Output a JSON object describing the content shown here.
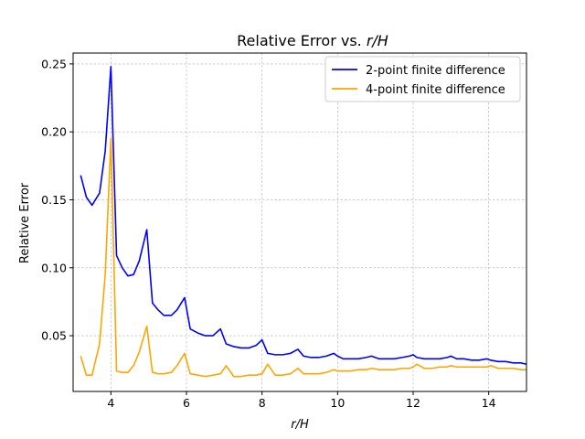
{
  "chart_data": {
    "type": "line",
    "title": "Relative Error vs. r/H",
    "xlabel": "r/H",
    "ylabel": "Relative Error",
    "xlim": [
      3.0,
      15.0
    ],
    "ylim": [
      0.009,
      0.258
    ],
    "xticks": [
      4,
      6,
      8,
      10,
      12,
      14
    ],
    "yticks": [
      0.05,
      0.1,
      0.15,
      0.2,
      0.25
    ],
    "xtick_labels": [
      "4",
      "6",
      "8",
      "10",
      "12",
      "14"
    ],
    "ytick_labels": [
      "0.05",
      "0.10",
      "0.15",
      "0.20",
      "0.25"
    ],
    "grid": true,
    "legend_position": "top-right",
    "series": [
      {
        "name": "2-point finite difference",
        "color": "#0000ff",
        "x": [
          3.2,
          3.35,
          3.5,
          3.7,
          3.85,
          4.0,
          4.15,
          4.3,
          4.45,
          4.6,
          4.75,
          4.95,
          5.1,
          5.25,
          5.4,
          5.6,
          5.75,
          5.95,
          6.1,
          6.3,
          6.5,
          6.7,
          6.9,
          7.05,
          7.25,
          7.45,
          7.65,
          7.85,
          8.0,
          8.15,
          8.35,
          8.55,
          8.75,
          8.95,
          9.1,
          9.3,
          9.5,
          9.7,
          9.9,
          10.0,
          10.15,
          10.35,
          10.55,
          10.75,
          10.9,
          11.1,
          11.3,
          11.5,
          11.7,
          11.9,
          12.0,
          12.1,
          12.3,
          12.5,
          12.7,
          12.9,
          13.0,
          13.15,
          13.35,
          13.55,
          13.75,
          13.95,
          14.05,
          14.25,
          14.45,
          14.65,
          14.85,
          15.0
        ],
        "values": [
          0.168,
          0.152,
          0.146,
          0.155,
          0.186,
          0.248,
          0.109,
          0.1,
          0.094,
          0.095,
          0.105,
          0.128,
          0.074,
          0.069,
          0.065,
          0.065,
          0.069,
          0.078,
          0.055,
          0.052,
          0.05,
          0.05,
          0.055,
          0.044,
          0.042,
          0.041,
          0.041,
          0.043,
          0.047,
          0.037,
          0.036,
          0.036,
          0.037,
          0.04,
          0.035,
          0.034,
          0.034,
          0.035,
          0.037,
          0.035,
          0.033,
          0.033,
          0.033,
          0.034,
          0.035,
          0.033,
          0.033,
          0.033,
          0.034,
          0.035,
          0.036,
          0.034,
          0.033,
          0.033,
          0.033,
          0.034,
          0.035,
          0.033,
          0.033,
          0.032,
          0.032,
          0.033,
          0.032,
          0.031,
          0.031,
          0.03,
          0.03,
          0.029
        ]
      },
      {
        "name": "4-point finite difference",
        "color": "#ffa500",
        "x": [
          3.2,
          3.35,
          3.5,
          3.7,
          3.85,
          4.0,
          4.15,
          4.3,
          4.45,
          4.6,
          4.75,
          4.95,
          5.1,
          5.25,
          5.4,
          5.6,
          5.75,
          5.95,
          6.1,
          6.3,
          6.5,
          6.7,
          6.9,
          7.05,
          7.25,
          7.45,
          7.65,
          7.85,
          8.0,
          8.15,
          8.35,
          8.55,
          8.75,
          8.95,
          9.1,
          9.3,
          9.5,
          9.7,
          9.9,
          10.0,
          10.15,
          10.35,
          10.55,
          10.75,
          10.9,
          11.1,
          11.3,
          11.5,
          11.7,
          11.9,
          12.0,
          12.1,
          12.3,
          12.5,
          12.7,
          12.9,
          13.0,
          13.15,
          13.35,
          13.55,
          13.75,
          13.95,
          14.05,
          14.25,
          14.45,
          14.65,
          14.85,
          15.0
        ],
        "values": [
          0.035,
          0.021,
          0.021,
          0.044,
          0.095,
          0.195,
          0.024,
          0.023,
          0.023,
          0.028,
          0.038,
          0.057,
          0.023,
          0.022,
          0.022,
          0.023,
          0.028,
          0.037,
          0.022,
          0.021,
          0.02,
          0.021,
          0.022,
          0.028,
          0.02,
          0.02,
          0.021,
          0.021,
          0.022,
          0.029,
          0.021,
          0.021,
          0.022,
          0.026,
          0.022,
          0.022,
          0.022,
          0.023,
          0.025,
          0.024,
          0.024,
          0.024,
          0.025,
          0.025,
          0.026,
          0.025,
          0.025,
          0.025,
          0.026,
          0.026,
          0.027,
          0.029,
          0.026,
          0.026,
          0.027,
          0.027,
          0.028,
          0.027,
          0.027,
          0.027,
          0.027,
          0.027,
          0.028,
          0.026,
          0.026,
          0.026,
          0.025,
          0.025
        ]
      }
    ]
  }
}
